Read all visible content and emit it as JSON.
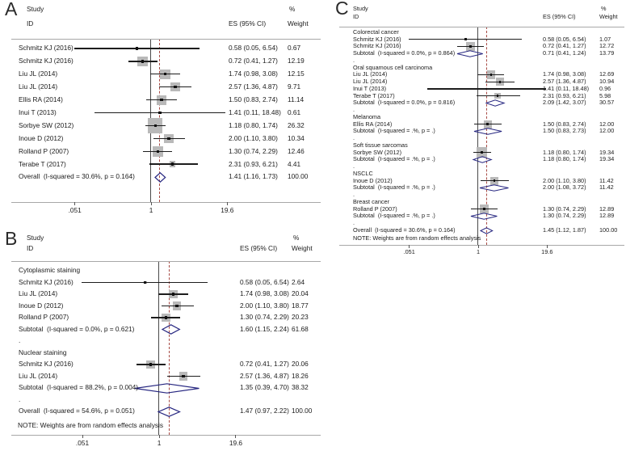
{
  "figure": {
    "colors": {
      "text": "#1b1b1b",
      "box": "#b9b9b9",
      "ci_line": "#1d1d1d",
      "marker": "#111111",
      "diamond": "#262680",
      "null_line": "#4a4a4a",
      "dashed_line": "#a84b45",
      "rule": "#a8a8a8",
      "tick": "#555555"
    }
  },
  "chart_data": [
    {
      "type": "forest",
      "panel_label": "A",
      "header": {
        "study": "Study",
        "id": "ID",
        "percent": "%",
        "es": "ES (95% CI)",
        "weight": "Weight"
      },
      "note": null,
      "axis": {
        "scale": "log",
        "tick_labels": [
          ".051",
          "1",
          "19.6"
        ],
        "tick_values": [
          0.051,
          1,
          19.6
        ]
      },
      "rows": [
        {
          "type": "study",
          "label": "Schmitz KJ (2016)",
          "es": 0.58,
          "lo": 0.05,
          "hi": 6.54,
          "es_text": "0.58 (0.05, 6.54)",
          "weight": 0.67,
          "weight_text": "0.67"
        },
        {
          "type": "study",
          "label": "Schmitz KJ (2016)",
          "es": 0.72,
          "lo": 0.41,
          "hi": 1.27,
          "es_text": "0.72 (0.41, 1.27)",
          "weight": 12.19,
          "weight_text": "12.19"
        },
        {
          "type": "study",
          "label": "Liu JL (2014)",
          "es": 1.74,
          "lo": 0.98,
          "hi": 3.08,
          "es_text": "1.74 (0.98, 3.08)",
          "weight": 12.15,
          "weight_text": "12.15"
        },
        {
          "type": "study",
          "label": "Liu JL (2014)",
          "es": 2.57,
          "lo": 1.36,
          "hi": 4.87,
          "es_text": "2.57 (1.36, 4.87)",
          "weight": 9.71,
          "weight_text": "9.71"
        },
        {
          "type": "study",
          "label": "Ellis RA (2014)",
          "es": 1.5,
          "lo": 0.83,
          "hi": 2.74,
          "es_text": "1.50 (0.83, 2.74)",
          "weight": 11.14,
          "weight_text": "11.14"
        },
        {
          "type": "study",
          "label": "Inui T (2013)",
          "es": 1.41,
          "lo": 0.11,
          "hi": 18.48,
          "es_text": "1.41 (0.11, 18.48)",
          "weight": 0.61,
          "weight_text": "0.61"
        },
        {
          "type": "study",
          "label": "Sorbye SW (2012)",
          "es": 1.18,
          "lo": 0.8,
          "hi": 1.74,
          "es_text": "1.18 (0.80, 1.74)",
          "weight": 26.32,
          "weight_text": "26.32"
        },
        {
          "type": "study",
          "label": "Inoue D (2012)",
          "es": 2.0,
          "lo": 1.1,
          "hi": 3.8,
          "es_text": "2.00 (1.10, 3.80)",
          "weight": 10.34,
          "weight_text": "10.34"
        },
        {
          "type": "study",
          "label": "Rolland P (2007)",
          "es": 1.3,
          "lo": 0.74,
          "hi": 2.29,
          "es_text": "1.30 (0.74, 2.29)",
          "weight": 12.46,
          "weight_text": "12.46"
        },
        {
          "type": "study",
          "label": "Terabe T (2017)",
          "es": 2.31,
          "lo": 0.93,
          "hi": 6.21,
          "es_text": "2.31 (0.93, 6.21)",
          "weight": 4.41,
          "weight_text": "4.41"
        },
        {
          "type": "overall",
          "label": "Overall  (I-squared = 30.6%, p = 0.164)",
          "es": 1.41,
          "lo": 1.16,
          "hi": 1.73,
          "es_text": "1.41 (1.16, 1.73)",
          "weight_text": "100.00"
        }
      ]
    },
    {
      "type": "forest",
      "panel_label": "B",
      "header": {
        "study": "Study",
        "id": "ID",
        "percent": "%",
        "es": "ES (95% CI)",
        "weight": "Weight"
      },
      "note": "NOTE: Weights are from random effects analysis",
      "axis": {
        "scale": "log",
        "tick_labels": [
          ".051",
          "1",
          "19.6"
        ],
        "tick_values": [
          0.051,
          1,
          19.6
        ]
      },
      "rows": [
        {
          "type": "group",
          "label": "Cytoplasmic staining"
        },
        {
          "type": "study",
          "label": "Schmitz KJ (2016)",
          "es": 0.58,
          "lo": 0.05,
          "hi": 6.54,
          "es_text": "0.58 (0.05, 6.54)",
          "weight": 2.64,
          "weight_text": "2.64"
        },
        {
          "type": "study",
          "label": "Liu JL (2014)",
          "es": 1.74,
          "lo": 0.98,
          "hi": 3.08,
          "es_text": "1.74 (0.98, 3.08)",
          "weight": 20.04,
          "weight_text": "20.04"
        },
        {
          "type": "study",
          "label": "Inoue D (2012)",
          "es": 2.0,
          "lo": 1.1,
          "hi": 3.8,
          "es_text": "2.00 (1.10, 3.80)",
          "weight": 18.77,
          "weight_text": "18.77"
        },
        {
          "type": "study",
          "label": "Rolland P (2007)",
          "es": 1.3,
          "lo": 0.74,
          "hi": 2.29,
          "es_text": "1.30 (0.74, 2.29)",
          "weight": 20.23,
          "weight_text": "20.23"
        },
        {
          "type": "subtotal",
          "label": "Subtotal  (I-squared = 0.0%, p = 0.621)",
          "es": 1.6,
          "lo": 1.15,
          "hi": 2.24,
          "es_text": "1.60 (1.15, 2.24)",
          "weight_text": "61.68"
        },
        {
          "type": "gap",
          "label": "."
        },
        {
          "type": "group",
          "label": "Nuclear staining"
        },
        {
          "type": "study",
          "label": "Schmitz KJ (2016)",
          "es": 0.72,
          "lo": 0.41,
          "hi": 1.27,
          "es_text": "0.72 (0.41, 1.27)",
          "weight": 20.06,
          "weight_text": "20.06"
        },
        {
          "type": "study",
          "label": "Liu JL (2014)",
          "es": 2.57,
          "lo": 1.36,
          "hi": 4.87,
          "es_text": "2.57 (1.36, 4.87)",
          "weight": 18.26,
          "weight_text": "18.26"
        },
        {
          "type": "subtotal",
          "label": "Subtotal  (I-squared = 88.2%, p = 0.004)",
          "es": 1.35,
          "lo": 0.39,
          "hi": 4.7,
          "es_text": "1.35 (0.39, 4.70)",
          "weight_text": "38.32"
        },
        {
          "type": "gap",
          "label": "."
        },
        {
          "type": "overall",
          "label": "Overall  (I-squared = 54.6%, p = 0.051)",
          "es": 1.47,
          "lo": 0.97,
          "hi": 2.22,
          "es_text": "1.47 (0.97, 2.22)",
          "weight_text": "100.00"
        }
      ]
    },
    {
      "type": "forest",
      "panel_label": "C",
      "header": {
        "study": "Study",
        "id": "ID",
        "percent": "%",
        "es": "ES (95% CI)",
        "weight": "Weight"
      },
      "note": "NOTE: Weights are from random effects analysis",
      "axis": {
        "scale": "log",
        "tick_labels": [
          ".051",
          "1",
          "19.6"
        ],
        "tick_values": [
          0.051,
          1,
          19.6
        ]
      },
      "rows": [
        {
          "type": "group",
          "label": "Colorectal cancer"
        },
        {
          "type": "study",
          "label": "Schmitz KJ (2016)",
          "es": 0.58,
          "lo": 0.05,
          "hi": 6.54,
          "es_text": "0.58 (0.05, 6.54)",
          "weight": 1.07,
          "weight_text": "1.07"
        },
        {
          "type": "study",
          "label": "Schmitz KJ (2016)",
          "es": 0.72,
          "lo": 0.41,
          "hi": 1.27,
          "es_text": "0.72 (0.41, 1.27)",
          "weight": 12.72,
          "weight_text": "12.72"
        },
        {
          "type": "subtotal",
          "label": "Subtotal  (I-squared = 0.0%, p = 0.864)",
          "es": 0.71,
          "lo": 0.41,
          "hi": 1.24,
          "es_text": "0.71 (0.41, 1.24)",
          "weight_text": "13.79"
        },
        {
          "type": "gap",
          "label": "."
        },
        {
          "type": "group",
          "label": "Oral squamous cell carcinoma"
        },
        {
          "type": "study",
          "label": "Liu JL (2014)",
          "es": 1.74,
          "lo": 0.98,
          "hi": 3.08,
          "es_text": "1.74 (0.98, 3.08)",
          "weight": 12.69,
          "weight_text": "12.69"
        },
        {
          "type": "study",
          "label": "Liu JL (2014)",
          "es": 2.57,
          "lo": 1.36,
          "hi": 4.87,
          "es_text": "2.57 (1.36, 4.87)",
          "weight": 10.94,
          "weight_text": "10.94"
        },
        {
          "type": "study",
          "label": "Inui T (2013)",
          "es": 1.41,
          "lo": 0.11,
          "hi": 18.48,
          "es_text": "1.41 (0.11, 18.48)",
          "weight": 0.96,
          "weight_text": "0.96"
        },
        {
          "type": "study",
          "label": "Terabe T (2017)",
          "es": 2.31,
          "lo": 0.93,
          "hi": 6.21,
          "es_text": "2.31 (0.93, 6.21)",
          "weight": 5.98,
          "weight_text": "5.98"
        },
        {
          "type": "subtotal",
          "label": "Subtotal  (I-squared = 0.0%, p = 0.816)",
          "es": 2.09,
          "lo": 1.42,
          "hi": 3.07,
          "es_text": "2.09 (1.42, 3.07)",
          "weight_text": "30.57"
        },
        {
          "type": "gap",
          "label": "."
        },
        {
          "type": "group",
          "label": "Melanoma"
        },
        {
          "type": "study",
          "label": "Ellis RA (2014)",
          "es": 1.5,
          "lo": 0.83,
          "hi": 2.74,
          "es_text": "1.50 (0.83, 2.74)",
          "weight": 12.0,
          "weight_text": "12.00"
        },
        {
          "type": "subtotal",
          "label": "Subtotal  (I-squared = .%, p = .)",
          "es": 1.5,
          "lo": 0.83,
          "hi": 2.73,
          "es_text": "1.50 (0.83, 2.73)",
          "weight_text": "12.00"
        },
        {
          "type": "gap",
          "label": "."
        },
        {
          "type": "group",
          "label": "Soft tissue sarcomas"
        },
        {
          "type": "study",
          "label": "Sorbye SW (2012)",
          "es": 1.18,
          "lo": 0.8,
          "hi": 1.74,
          "es_text": "1.18 (0.80, 1.74)",
          "weight": 19.34,
          "weight_text": "19.34"
        },
        {
          "type": "subtotal",
          "label": "Subtotal  (I-squared = .%, p = .)",
          "es": 1.18,
          "lo": 0.8,
          "hi": 1.74,
          "es_text": "1.18 (0.80, 1.74)",
          "weight_text": "19.34"
        },
        {
          "type": "gap",
          "label": "."
        },
        {
          "type": "group",
          "label": "NSCLC"
        },
        {
          "type": "study",
          "label": "Inoue D (2012)",
          "es": 2.0,
          "lo": 1.1,
          "hi": 3.8,
          "es_text": "2.00 (1.10, 3.80)",
          "weight": 11.42,
          "weight_text": "11.42"
        },
        {
          "type": "subtotal",
          "label": "Subtotal  (I-squared = .%, p = .)",
          "es": 2.0,
          "lo": 1.08,
          "hi": 3.72,
          "es_text": "2.00 (1.08, 3.72)",
          "weight_text": "11.42"
        },
        {
          "type": "gap",
          "label": "."
        },
        {
          "type": "group",
          "label": "Breast cancer"
        },
        {
          "type": "study",
          "label": "Rolland P (2007)",
          "es": 1.3,
          "lo": 0.74,
          "hi": 2.29,
          "es_text": "1.30 (0.74, 2.29)",
          "weight": 12.89,
          "weight_text": "12.89"
        },
        {
          "type": "subtotal",
          "label": "Subtotal  (I-squared = .%, p = .)",
          "es": 1.3,
          "lo": 0.74,
          "hi": 2.29,
          "es_text": "1.30 (0.74, 2.29)",
          "weight_text": "12.89"
        },
        {
          "type": "gap",
          "label": "."
        },
        {
          "type": "overall",
          "label": "Overall  (I-squared = 30.6%, p = 0.164)",
          "es": 1.45,
          "lo": 1.12,
          "hi": 1.87,
          "es_text": "1.45 (1.12, 1.87)",
          "weight_text": "100.00"
        }
      ]
    }
  ]
}
